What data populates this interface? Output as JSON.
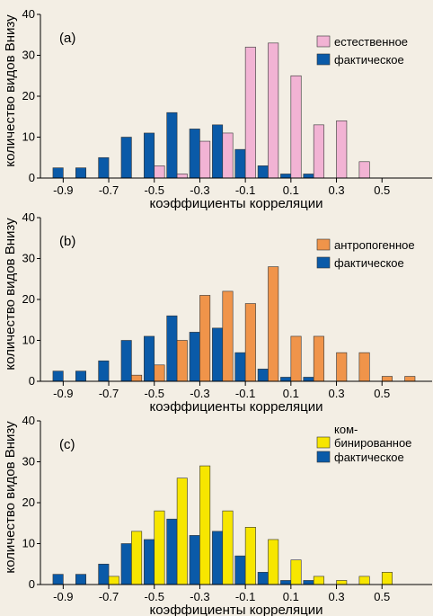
{
  "chart_data": [
    {
      "type": "bar",
      "panel_label": "(a)",
      "xlabel": "коэффициенты корреляции",
      "ylabel": "количество видов Внизу",
      "xlim": [
        -1.0,
        0.72
      ],
      "ylim": [
        0,
        40
      ],
      "xticks": [
        -0.9,
        -0.7,
        -0.5,
        -0.3,
        -0.1,
        0.1,
        0.3,
        0.5
      ],
      "yticks": [
        0,
        10,
        20,
        30,
        40
      ],
      "legend_position": "top-right",
      "bin_centers": [
        -0.9,
        -0.8,
        -0.7,
        -0.6,
        -0.5,
        -0.4,
        -0.3,
        -0.2,
        -0.1,
        0.0,
        0.1,
        0.2,
        0.3,
        0.4,
        0.5,
        0.6
      ],
      "series": [
        {
          "name": "естественное",
          "color": "#f2b3d4",
          "values": [
            0,
            0,
            0,
            0,
            3,
            1,
            9,
            11,
            32,
            33,
            25,
            13,
            14,
            4,
            0,
            0
          ]
        },
        {
          "name": "фактическое",
          "color": "#0a5aa8",
          "values": [
            2.5,
            2.5,
            5,
            10,
            11,
            16,
            12,
            13,
            7,
            3,
            1,
            1,
            0,
            0,
            0,
            0
          ]
        }
      ]
    },
    {
      "type": "bar",
      "panel_label": "(b)",
      "xlabel": "коэффициенты корреляции",
      "ylabel": "количество видов Внизу",
      "xlim": [
        -1.0,
        0.72
      ],
      "ylim": [
        0,
        40
      ],
      "xticks": [
        -0.9,
        -0.7,
        -0.5,
        -0.3,
        -0.1,
        0.1,
        0.3,
        0.5
      ],
      "yticks": [
        0,
        10,
        20,
        30,
        40
      ],
      "legend_position": "top-right",
      "bin_centers": [
        -0.9,
        -0.8,
        -0.7,
        -0.6,
        -0.5,
        -0.4,
        -0.3,
        -0.2,
        -0.1,
        0.0,
        0.1,
        0.2,
        0.3,
        0.4,
        0.5,
        0.6
      ],
      "series": [
        {
          "name": "антропогенное",
          "color": "#f0944a",
          "values": [
            0,
            0,
            0,
            1.5,
            4,
            10,
            21,
            22,
            19,
            28,
            11,
            11,
            7,
            7,
            1.2,
            1.2
          ]
        },
        {
          "name": "фактическое",
          "color": "#0a5aa8",
          "values": [
            2.5,
            2.5,
            5,
            10,
            11,
            16,
            12,
            13,
            7,
            3,
            1,
            1,
            0,
            0,
            0,
            0
          ]
        }
      ]
    },
    {
      "type": "bar",
      "panel_label": "(c)",
      "xlabel": "коэффициенты корреляции",
      "ylabel": "количество видов Внизу",
      "xlim": [
        -1.0,
        0.72
      ],
      "ylim": [
        0,
        40
      ],
      "xticks": [
        -0.9,
        -0.7,
        -0.5,
        -0.3,
        -0.1,
        0.1,
        0.3,
        0.5
      ],
      "yticks": [
        0,
        10,
        20,
        30,
        40
      ],
      "legend_position": "top-right",
      "bin_centers": [
        -0.9,
        -0.8,
        -0.7,
        -0.6,
        -0.5,
        -0.4,
        -0.3,
        -0.2,
        -0.1,
        0.0,
        0.1,
        0.2,
        0.3,
        0.4,
        0.5,
        0.6
      ],
      "series": [
        {
          "name": "ком- бинированное",
          "name_lines": [
            "ком-",
            "бинированное"
          ],
          "color": "#f7e600",
          "values": [
            0,
            0,
            2,
            13,
            18,
            26,
            29,
            18,
            14,
            11,
            6,
            2,
            1,
            2,
            3,
            0
          ]
        },
        {
          "name": "фактическое",
          "color": "#0a5aa8",
          "values": [
            2.5,
            2.5,
            5,
            10,
            11,
            16,
            12,
            13,
            7,
            3,
            1,
            1,
            0,
            0,
            0,
            0
          ]
        }
      ]
    }
  ]
}
